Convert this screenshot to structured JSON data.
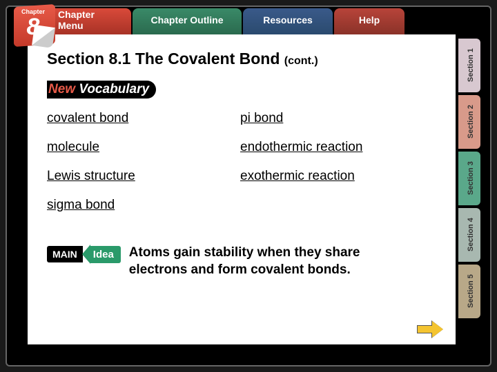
{
  "chapter_badge": {
    "label": "Chapter",
    "number": "8"
  },
  "nav": {
    "chapter_menu": "Chapter Menu",
    "outline": "Chapter Outline",
    "resources": "Resources",
    "help": "Help"
  },
  "section_title": "Section 8.1  The Covalent Bond",
  "section_cont": "(cont.)",
  "new_vocab": {
    "new": "New",
    "vocab": " Vocabulary"
  },
  "vocab": {
    "left": [
      "covalent bond",
      "molecule",
      "Lewis structure",
      "sigma bond"
    ],
    "right": [
      "pi bond",
      "endothermic reaction",
      "exothermic reaction"
    ]
  },
  "main_idea_badge": {
    "main": "MAIN",
    "idea": "Idea"
  },
  "main_idea_text": "Atoms gain stability when they share electrons and form covalent bonds.",
  "side_tabs": [
    {
      "label": "Section 1",
      "color": "#d8c8d0"
    },
    {
      "label": "Section 2",
      "color": "#d89a8a"
    },
    {
      "label": "Section 3",
      "color": "#5aa88a"
    },
    {
      "label": "Section 4",
      "color": "#a8b8b0"
    },
    {
      "label": "Section 5",
      "color": "#b8a888"
    }
  ],
  "colors": {
    "accent_red": "#e85a48",
    "accent_green": "#2a9a6a",
    "arrow": "#f4c430"
  }
}
